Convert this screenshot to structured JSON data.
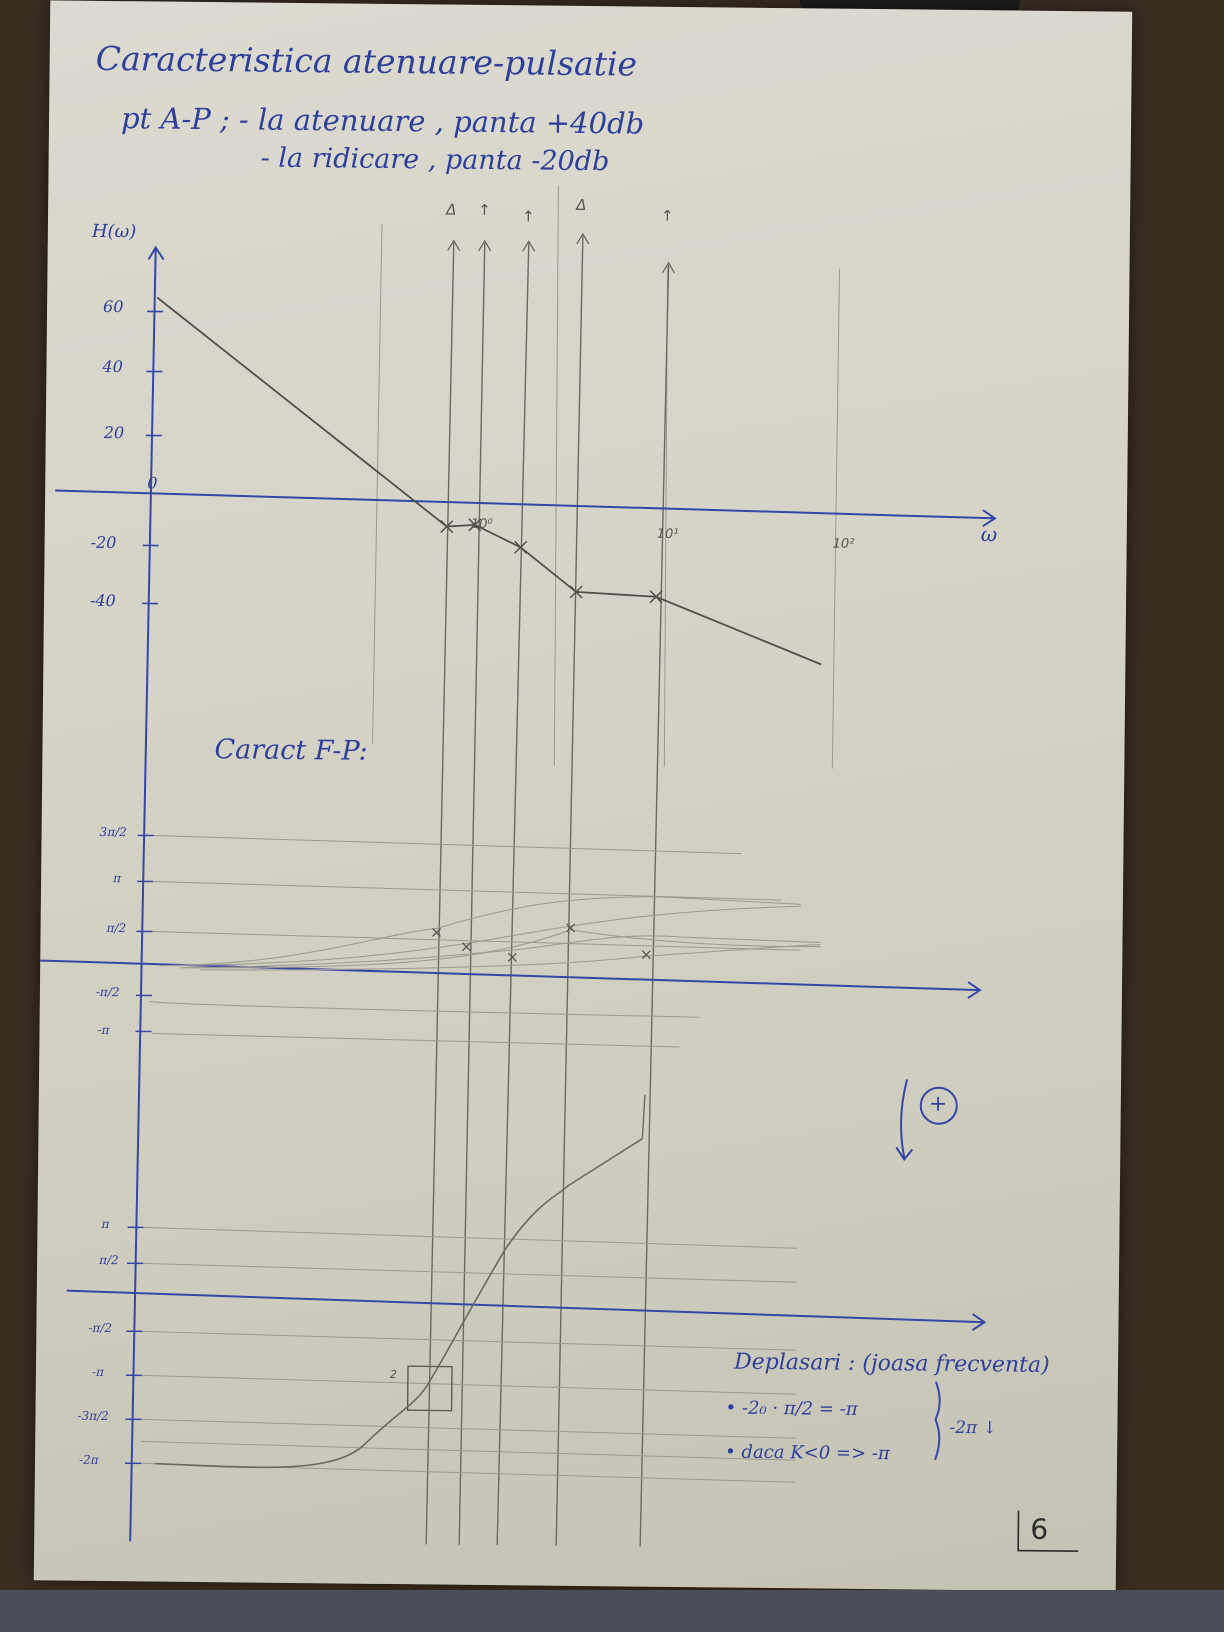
{
  "heading": {
    "title": "Caracteristica atenuare-pulsatie",
    "line2": "pt A-P ; - la atenuare , panta +40db",
    "line3": "- la ridicare , panta -20db"
  },
  "amplitude_plot": {
    "y_axis_label": "H(ω)",
    "x_axis_label": "ω",
    "y_ticks": [
      "60",
      "40",
      "20",
      "0",
      "-20",
      "-40"
    ],
    "x_ticks": [
      "10⁰",
      "10¹",
      "10²"
    ],
    "markers": [
      "Δ",
      "↑",
      "↑",
      "Δ",
      "↑"
    ]
  },
  "phase_section": {
    "title": "Caract F-P:",
    "upper_ticks": [
      "3π/2",
      "π",
      "π/2",
      "-π/2",
      "-π"
    ],
    "lower_ticks": [
      "π",
      "π/2",
      "-π/2",
      "-π",
      "-3π/2",
      "-2π"
    ],
    "box_label": "2",
    "plus_symbol": "+"
  },
  "notes": {
    "title": "Deplasari : (joasa frecventa)",
    "item1": "• -2₀ · π/2 = -π",
    "item2": "• daca K<0 => -π",
    "total": "-2π ↓"
  },
  "page_number": "6"
}
